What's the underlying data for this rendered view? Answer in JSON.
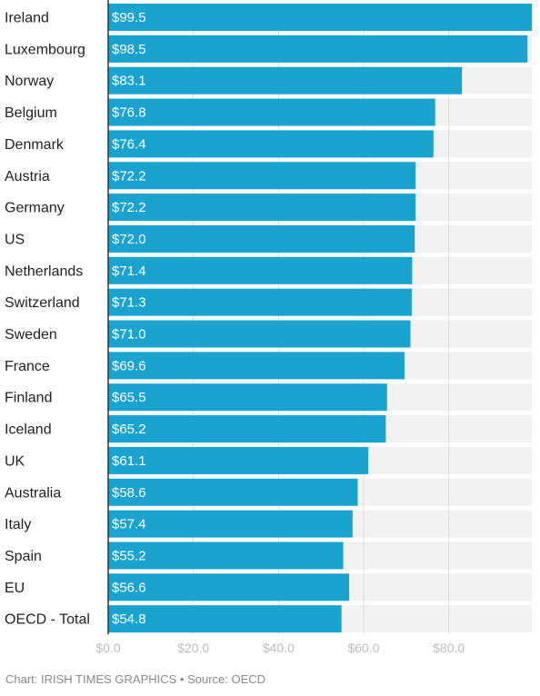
{
  "chart_data": {
    "type": "bar",
    "orientation": "horizontal",
    "categories": [
      "Ireland",
      "Luxembourg",
      "Norway",
      "Belgium",
      "Denmark",
      "Austria",
      "Germany",
      "US",
      "Netherlands",
      "Switzerland",
      "Sweden",
      "France",
      "Finland",
      "Iceland",
      "UK",
      "Australia",
      "Italy",
      "Spain",
      "EU",
      "OECD - Total"
    ],
    "values": [
      99.5,
      98.5,
      83.1,
      76.8,
      76.4,
      72.2,
      72.2,
      72.0,
      71.4,
      71.3,
      71.0,
      69.6,
      65.5,
      65.2,
      61.1,
      58.6,
      57.4,
      55.2,
      56.6,
      54.8
    ],
    "value_labels": [
      "$99.5",
      "$98.5",
      "$83.1",
      "$76.8",
      "$76.4",
      "$72.2",
      "$72.2",
      "$72.0",
      "$71.4",
      "$71.3",
      "$71.0",
      "$69.6",
      "$65.5",
      "$65.2",
      "$61.1",
      "$58.6",
      "$57.4",
      "$55.2",
      "$56.6",
      "$54.8"
    ],
    "x_ticks": [
      0,
      20,
      40,
      60,
      80
    ],
    "x_tick_labels": [
      "$0.0",
      "$20.0",
      "$40.0",
      "$60.0",
      "$80.0"
    ],
    "xlim": [
      0,
      99.5
    ],
    "grid": true,
    "colors": {
      "bar": "#1ba3cf",
      "track": "#f2f2f2",
      "grid": "#dcdcdc",
      "axis": "#333333"
    }
  },
  "footer": {
    "credit": "Chart: IRISH TIMES GRAPHICS • Source: OECD"
  }
}
